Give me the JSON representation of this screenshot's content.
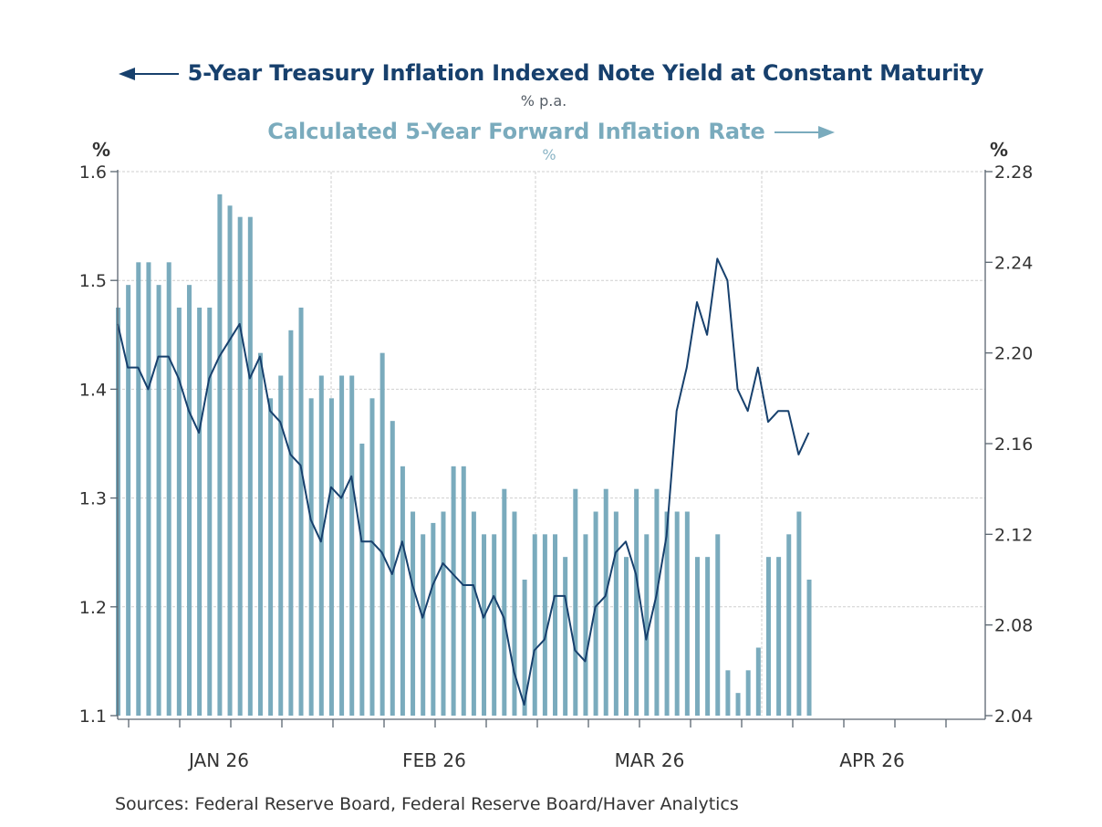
{
  "titles": {
    "left_series_title": "5-Year Treasury Inflation Indexed Note Yield at Constant Maturity",
    "left_series_unit": "% p.a.",
    "right_series_title": "Calculated 5-Year Forward Inflation Rate",
    "right_series_unit": "%"
  },
  "axes": {
    "left_unit": "%",
    "right_unit": "%"
  },
  "source": "Sources:  Federal Reserve Board, Federal Reserve Board/Haver Analytics",
  "colors": {
    "line": "#17406d",
    "bars": "#7aabbd",
    "axis": "#5a6570",
    "grid": "#cfcfcf"
  },
  "chart_data": {
    "type": "bar+line",
    "title": "5-Year Treasury Inflation Indexed Note Yield at Constant Maturity / Calculated 5-Year Forward Inflation Rate",
    "x_tick_labels": [
      "JAN 26",
      "FEB 26",
      "MAR 26",
      "APR 26"
    ],
    "x_range_months": [
      "Jan 2026",
      "Apr 2026"
    ],
    "frequency": "business daily",
    "grid": true,
    "y_left": {
      "label": "%",
      "range": [
        1.1,
        1.6
      ],
      "ticks": [
        "1.1",
        "1.2",
        "1.3",
        "1.4",
        "1.5",
        "1.6"
      ]
    },
    "y_right": {
      "label": "%",
      "range": [
        2.04,
        2.28
      ],
      "ticks": [
        "2.04",
        "2.08",
        "2.12",
        "2.16",
        "2.20",
        "2.24",
        "2.28"
      ]
    },
    "series": [
      {
        "name": "5-Year Treasury Inflation Indexed Note Yield at Constant Maturity",
        "unit": "% p.a.",
        "type": "line",
        "axis": "left",
        "values": [
          1.46,
          1.42,
          1.42,
          1.4,
          1.43,
          1.43,
          1.41,
          1.38,
          1.36,
          1.41,
          1.43,
          1.445,
          1.46,
          1.41,
          1.43,
          1.38,
          1.37,
          1.34,
          1.33,
          1.28,
          1.26,
          1.31,
          1.3,
          1.32,
          1.26,
          1.26,
          1.25,
          1.23,
          1.26,
          1.22,
          1.19,
          1.22,
          1.24,
          1.23,
          1.22,
          1.22,
          1.19,
          1.21,
          1.19,
          1.14,
          1.11,
          1.16,
          1.17,
          1.21,
          1.21,
          1.16,
          1.15,
          1.2,
          1.21,
          1.25,
          1.26,
          1.23,
          1.17,
          1.21,
          1.265,
          1.38,
          1.42,
          1.48,
          1.45,
          1.52,
          1.5,
          1.4,
          1.38,
          1.42,
          1.37,
          1.38,
          1.38,
          1.34,
          1.36
        ]
      },
      {
        "name": "Calculated 5-Year Forward Inflation Rate",
        "unit": "%",
        "type": "bar",
        "axis": "right",
        "values": [
          2.22,
          2.23,
          2.24,
          2.24,
          2.23,
          2.24,
          2.22,
          2.23,
          2.22,
          2.22,
          2.27,
          2.265,
          2.26,
          2.26,
          2.2,
          2.18,
          2.19,
          2.21,
          2.22,
          2.18,
          2.19,
          2.18,
          2.19,
          2.19,
          2.16,
          2.18,
          2.2,
          2.17,
          2.15,
          2.13,
          2.12,
          2.125,
          2.13,
          2.15,
          2.15,
          2.13,
          2.12,
          2.12,
          2.14,
          2.13,
          2.1,
          2.12,
          2.12,
          2.12,
          2.11,
          2.14,
          2.12,
          2.13,
          2.14,
          2.13,
          2.11,
          2.14,
          2.12,
          2.14,
          2.13,
          2.13,
          2.13,
          2.11,
          2.11,
          2.12,
          2.06,
          2.05,
          2.06,
          2.07,
          2.11,
          2.11,
          2.12,
          2.13,
          2.1
        ]
      }
    ]
  }
}
